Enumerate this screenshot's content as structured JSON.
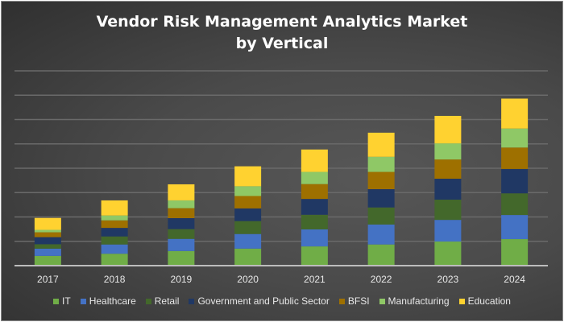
{
  "chart_data": {
    "type": "bar",
    "stacked": true,
    "title": "Vendor Risk Management Analytics Market by Vertical",
    "title_lines": [
      "Vendor Risk Management Analytics Market",
      "by Vertical"
    ],
    "categories": [
      "2017",
      "2018",
      "2019",
      "2020",
      "2021",
      "2022",
      "2023",
      "2024"
    ],
    "series": [
      {
        "name": "IT",
        "color": "#70ad47",
        "values": [
          0.4,
          0.49,
          0.6,
          0.7,
          0.79,
          0.87,
          0.99,
          1.09
        ]
      },
      {
        "name": "Healthcare",
        "color": "#4472c4",
        "values": [
          0.3,
          0.38,
          0.5,
          0.6,
          0.7,
          0.82,
          0.89,
          0.99
        ]
      },
      {
        "name": "Retail",
        "color": "#43682b",
        "values": [
          0.18,
          0.33,
          0.4,
          0.53,
          0.6,
          0.7,
          0.83,
          0.89
        ]
      },
      {
        "name": "Government and Public Sector",
        "color": "#203864",
        "values": [
          0.29,
          0.35,
          0.45,
          0.52,
          0.65,
          0.75,
          0.86,
          1.0
        ]
      },
      {
        "name": "BFSI",
        "color": "#9e7000",
        "values": [
          0.2,
          0.31,
          0.41,
          0.51,
          0.61,
          0.71,
          0.79,
          0.88
        ]
      },
      {
        "name": "Manufacturing",
        "color": "#8fc866",
        "values": [
          0.1,
          0.2,
          0.32,
          0.4,
          0.5,
          0.62,
          0.66,
          0.78
        ]
      },
      {
        "name": "Education",
        "color": "#ffd230",
        "values": [
          0.49,
          0.62,
          0.66,
          0.82,
          0.92,
          0.99,
          1.13,
          1.23
        ]
      }
    ],
    "xlabel": "",
    "ylabel": "",
    "ylim": [
      0,
      8
    ],
    "y_tick_labels_shown": false,
    "grid": true,
    "legend": "bottom"
  }
}
